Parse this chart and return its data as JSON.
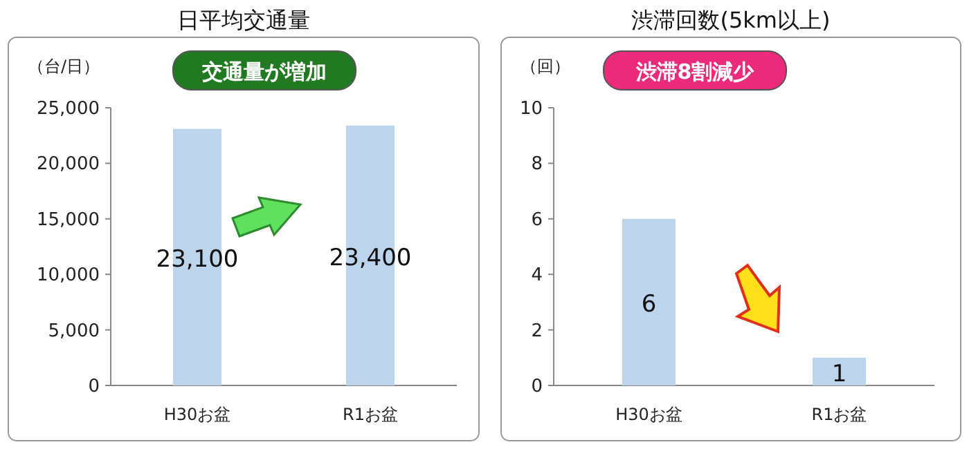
{
  "chart_data": [
    {
      "type": "bar",
      "title": "日平均交通量",
      "ylabel": "（台/日）",
      "annotations": [
        "交通量が増加"
      ],
      "categories": [
        "H30お盆",
        "R1お盆"
      ],
      "values": [
        23100,
        23400
      ],
      "value_labels": [
        "23,100",
        "23,400"
      ],
      "color": "#bcd5ed",
      "ylim": [
        0,
        25000
      ],
      "yticks": [
        0,
        {
          "value": 5000,
          "label": "5,000"
        },
        {
          "value": 10000,
          "label": "10,000"
        },
        {
          "value": 15000,
          "label": "15,000"
        },
        {
          "value": 20000,
          "label": "20,000"
        },
        {
          "value": 25000,
          "label": "25,000"
        }
      ]
    },
    {
      "type": "bar",
      "title": "渋滞回数(5km以上)",
      "ylabel": "（回）",
      "annotations": [
        "渋滞8割減少"
      ],
      "categories": [
        "H30お盆",
        "R1お盆"
      ],
      "values": [
        6,
        1
      ],
      "data_labels": true,
      "color": "#bcd5ed",
      "ylim": [
        0,
        10
      ],
      "yticks": [
        0,
        2,
        4,
        6,
        8,
        10
      ]
    }
  ]
}
